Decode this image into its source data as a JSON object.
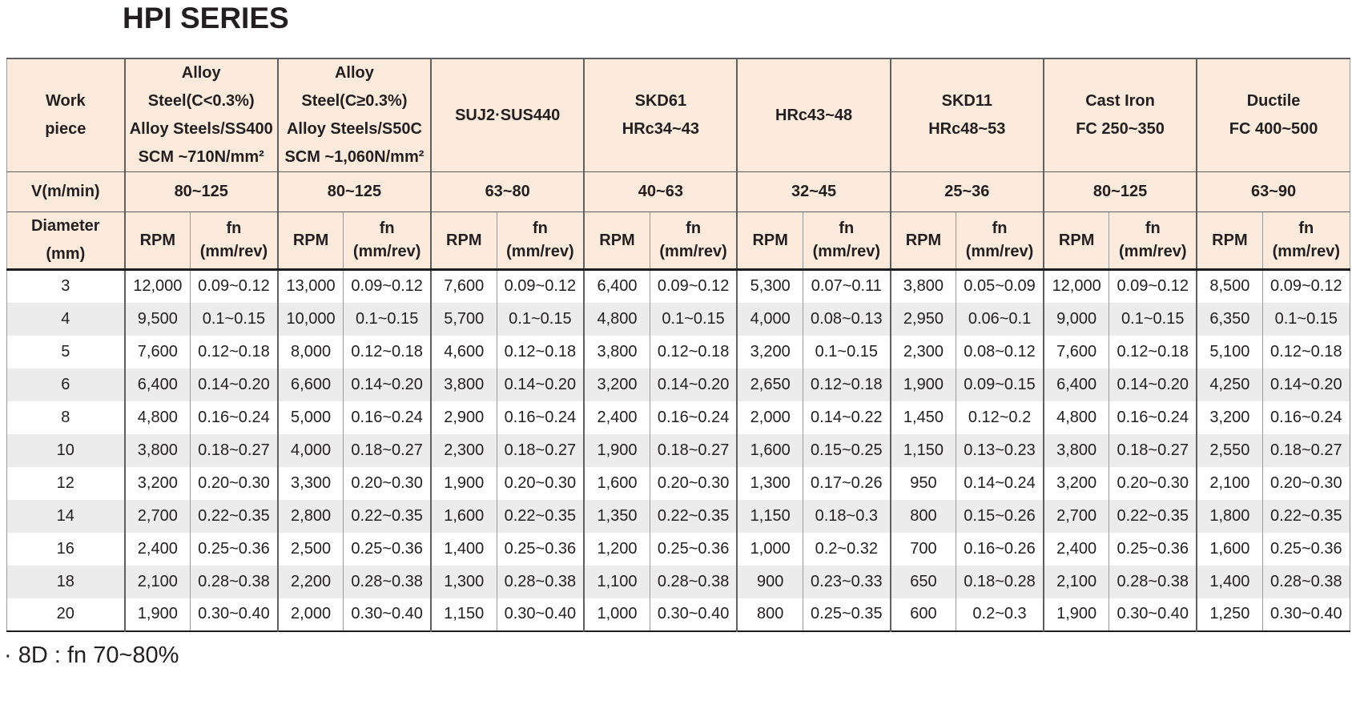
{
  "title": "HPI SERIES",
  "footnote": "· 8D : fn 70~80%",
  "colors": {
    "header_bg": "#fcebdc",
    "row_alt_bg": "#ececec",
    "text": "#231f20"
  },
  "table": {
    "corner_label_lines": [
      "Work",
      "piece"
    ],
    "v_row_label": "V(m/min)",
    "diameter_label_lines": [
      "Diameter",
      "(mm)"
    ],
    "rpm_label": "RPM",
    "fn_label_lines": [
      "fn",
      "(mm/rev)"
    ],
    "materials": [
      {
        "name_lines": [
          "Alloy Steel(C<0.3%)",
          "Alloy Steels/SS400",
          "SCM ~710N/mm²"
        ],
        "v": "80~125"
      },
      {
        "name_lines": [
          "Alloy Steel(C≥0.3%)",
          "Alloy Steels/S50C",
          "SCM ~1,060N/mm²"
        ],
        "v": "80~125"
      },
      {
        "name_lines": [
          "SUJ2·SUS440"
        ],
        "v": "63~80"
      },
      {
        "name_lines": [
          "SKD61",
          "HRc34~43"
        ],
        "v": "40~63"
      },
      {
        "name_lines": [
          "HRc43~48"
        ],
        "v": "32~45"
      },
      {
        "name_lines": [
          "SKD11",
          "HRc48~53"
        ],
        "v": "25~36"
      },
      {
        "name_lines": [
          "Cast Iron",
          "FC 250~350"
        ],
        "v": "80~125"
      },
      {
        "name_lines": [
          "Ductile",
          "FC 400~500"
        ],
        "v": "63~90"
      }
    ],
    "rows": [
      {
        "diameter": "3",
        "cells": [
          [
            "12,000",
            "0.09~0.12"
          ],
          [
            "13,000",
            "0.09~0.12"
          ],
          [
            "7,600",
            "0.09~0.12"
          ],
          [
            "6,400",
            "0.09~0.12"
          ],
          [
            "5,300",
            "0.07~0.11"
          ],
          [
            "3,800",
            "0.05~0.09"
          ],
          [
            "12,000",
            "0.09~0.12"
          ],
          [
            "8,500",
            "0.09~0.12"
          ]
        ]
      },
      {
        "diameter": "4",
        "cells": [
          [
            "9,500",
            "0.1~0.15"
          ],
          [
            "10,000",
            "0.1~0.15"
          ],
          [
            "5,700",
            "0.1~0.15"
          ],
          [
            "4,800",
            "0.1~0.15"
          ],
          [
            "4,000",
            "0.08~0.13"
          ],
          [
            "2,950",
            "0.06~0.1"
          ],
          [
            "9,000",
            "0.1~0.15"
          ],
          [
            "6,350",
            "0.1~0.15"
          ]
        ]
      },
      {
        "diameter": "5",
        "cells": [
          [
            "7,600",
            "0.12~0.18"
          ],
          [
            "8,000",
            "0.12~0.18"
          ],
          [
            "4,600",
            "0.12~0.18"
          ],
          [
            "3,800",
            "0.12~0.18"
          ],
          [
            "3,200",
            "0.1~0.15"
          ],
          [
            "2,300",
            "0.08~0.12"
          ],
          [
            "7,600",
            "0.12~0.18"
          ],
          [
            "5,100",
            "0.12~0.18"
          ]
        ]
      },
      {
        "diameter": "6",
        "cells": [
          [
            "6,400",
            "0.14~0.20"
          ],
          [
            "6,600",
            "0.14~0.20"
          ],
          [
            "3,800",
            "0.14~0.20"
          ],
          [
            "3,200",
            "0.14~0.20"
          ],
          [
            "2,650",
            "0.12~0.18"
          ],
          [
            "1,900",
            "0.09~0.15"
          ],
          [
            "6,400",
            "0.14~0.20"
          ],
          [
            "4,250",
            "0.14~0.20"
          ]
        ]
      },
      {
        "diameter": "8",
        "cells": [
          [
            "4,800",
            "0.16~0.24"
          ],
          [
            "5,000",
            "0.16~0.24"
          ],
          [
            "2,900",
            "0.16~0.24"
          ],
          [
            "2,400",
            "0.16~0.24"
          ],
          [
            "2,000",
            "0.14~0.22"
          ],
          [
            "1,450",
            "0.12~0.2"
          ],
          [
            "4,800",
            "0.16~0.24"
          ],
          [
            "3,200",
            "0.16~0.24"
          ]
        ]
      },
      {
        "diameter": "10",
        "cells": [
          [
            "3,800",
            "0.18~0.27"
          ],
          [
            "4,000",
            "0.18~0.27"
          ],
          [
            "2,300",
            "0.18~0.27"
          ],
          [
            "1,900",
            "0.18~0.27"
          ],
          [
            "1,600",
            "0.15~0.25"
          ],
          [
            "1,150",
            "0.13~0.23"
          ],
          [
            "3,800",
            "0.18~0.27"
          ],
          [
            "2,550",
            "0.18~0.27"
          ]
        ]
      },
      {
        "diameter": "12",
        "cells": [
          [
            "3,200",
            "0.20~0.30"
          ],
          [
            "3,300",
            "0.20~0.30"
          ],
          [
            "1,900",
            "0.20~0.30"
          ],
          [
            "1,600",
            "0.20~0.30"
          ],
          [
            "1,300",
            "0.17~0.26"
          ],
          [
            "950",
            "0.14~0.24"
          ],
          [
            "3,200",
            "0.20~0.30"
          ],
          [
            "2,100",
            "0.20~0.30"
          ]
        ]
      },
      {
        "diameter": "14",
        "cells": [
          [
            "2,700",
            "0.22~0.35"
          ],
          [
            "2,800",
            "0.22~0.35"
          ],
          [
            "1,600",
            "0.22~0.35"
          ],
          [
            "1,350",
            "0.22~0.35"
          ],
          [
            "1,150",
            "0.18~0.3"
          ],
          [
            "800",
            "0.15~0.26"
          ],
          [
            "2,700",
            "0.22~0.35"
          ],
          [
            "1,800",
            "0.22~0.35"
          ]
        ]
      },
      {
        "diameter": "16",
        "cells": [
          [
            "2,400",
            "0.25~0.36"
          ],
          [
            "2,500",
            "0.25~0.36"
          ],
          [
            "1,400",
            "0.25~0.36"
          ],
          [
            "1,200",
            "0.25~0.36"
          ],
          [
            "1,000",
            "0.2~0.32"
          ],
          [
            "700",
            "0.16~0.26"
          ],
          [
            "2,400",
            "0.25~0.36"
          ],
          [
            "1,600",
            "0.25~0.36"
          ]
        ]
      },
      {
        "diameter": "18",
        "cells": [
          [
            "2,100",
            "0.28~0.38"
          ],
          [
            "2,200",
            "0.28~0.38"
          ],
          [
            "1,300",
            "0.28~0.38"
          ],
          [
            "1,100",
            "0.28~0.38"
          ],
          [
            "900",
            "0.23~0.33"
          ],
          [
            "650",
            "0.18~0.28"
          ],
          [
            "2,100",
            "0.28~0.38"
          ],
          [
            "1,400",
            "0.28~0.38"
          ]
        ]
      },
      {
        "diameter": "20",
        "cells": [
          [
            "1,900",
            "0.30~0.40"
          ],
          [
            "2,000",
            "0.30~0.40"
          ],
          [
            "1,150",
            "0.30~0.40"
          ],
          [
            "1,000",
            "0.30~0.40"
          ],
          [
            "800",
            "0.25~0.35"
          ],
          [
            "600",
            "0.2~0.3"
          ],
          [
            "1,900",
            "0.30~0.40"
          ],
          [
            "1,250",
            "0.30~0.40"
          ]
        ]
      }
    ]
  }
}
